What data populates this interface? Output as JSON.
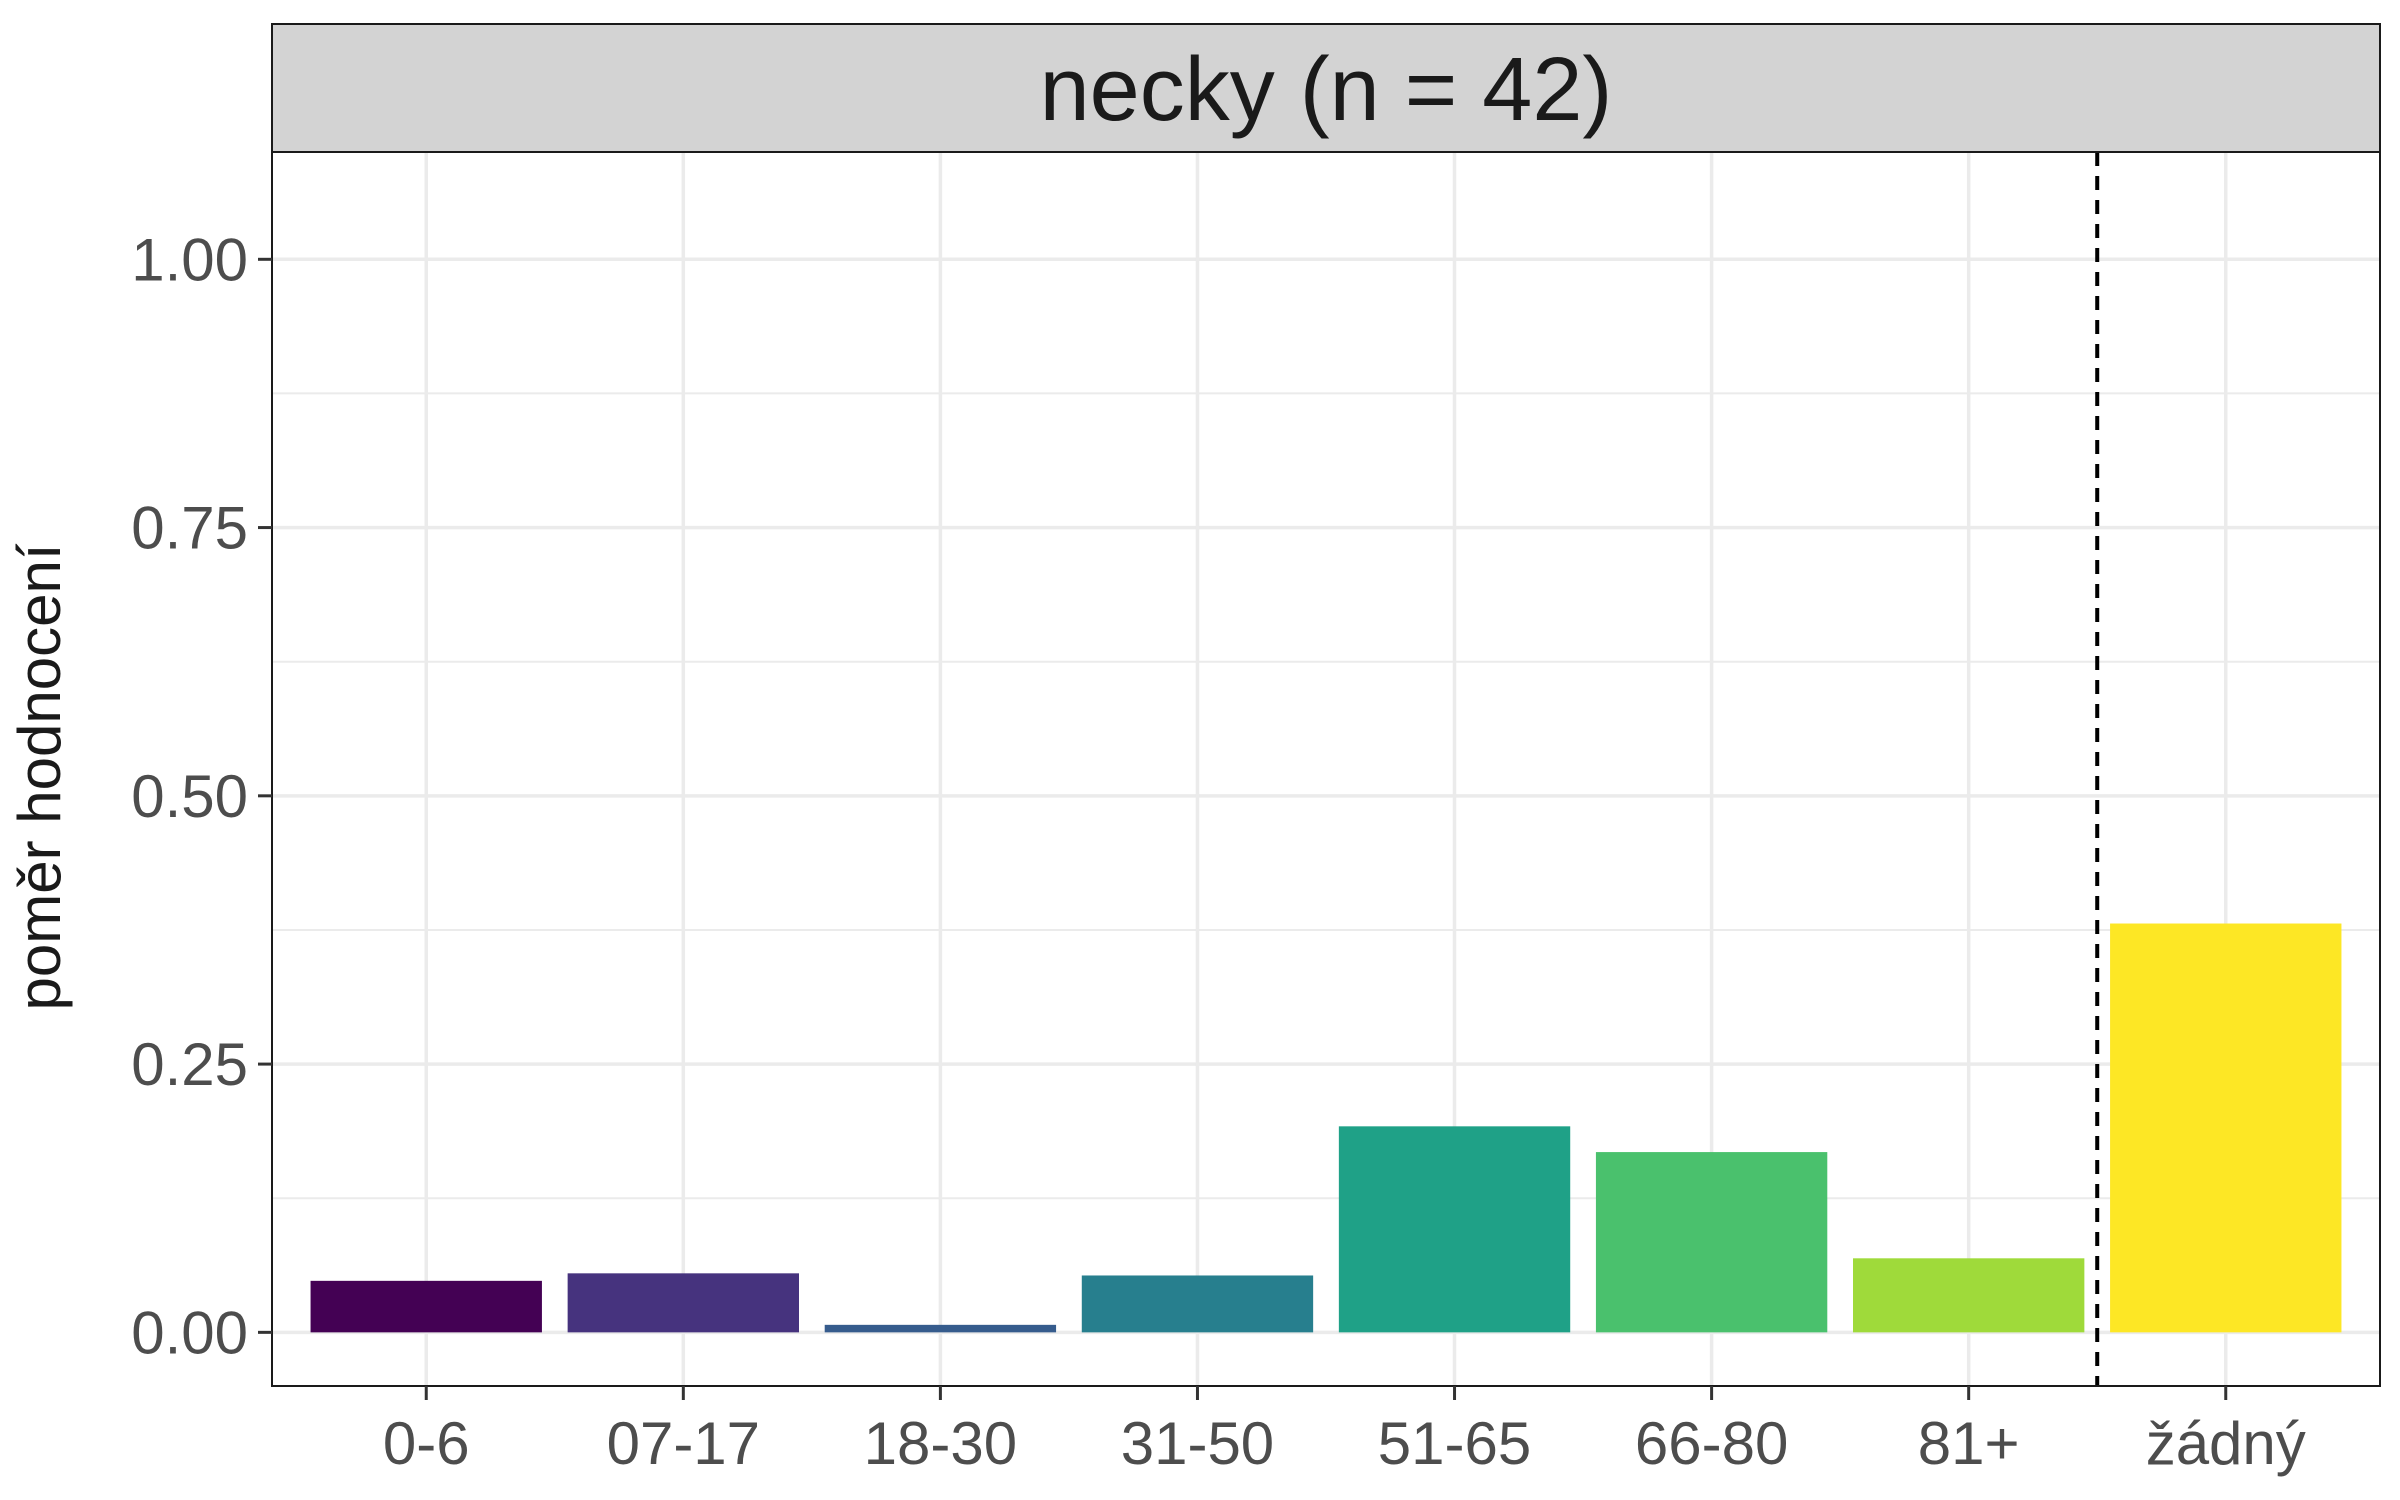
{
  "chart_data": {
    "type": "bar",
    "title": "necky (n = 42)",
    "xlabel": "",
    "ylabel": "poměr hodnocení",
    "categories": [
      "0-6",
      "07-17",
      "18-30",
      "31-50",
      "51-65",
      "66-80",
      "81+",
      "žádný"
    ],
    "values": [
      0.048,
      0.055,
      0.007,
      0.053,
      0.192,
      0.168,
      0.069,
      0.381
    ],
    "colors": [
      "#440154",
      "#46337E",
      "#365C8D",
      "#277F8E",
      "#1FA187",
      "#4AC16D",
      "#9FDA3A",
      "#FDE725"
    ],
    "ylim": [
      -0.05,
      1.1
    ],
    "yticks": [
      0,
      0.25,
      0.5,
      0.75,
      1.0
    ],
    "ytick_labels": [
      "0.00",
      "0.25",
      "0.50",
      "0.75",
      "1.00"
    ],
    "grid": true,
    "reference_line": {
      "style": "dashed",
      "between": [
        "81+",
        "žádný"
      ]
    }
  }
}
